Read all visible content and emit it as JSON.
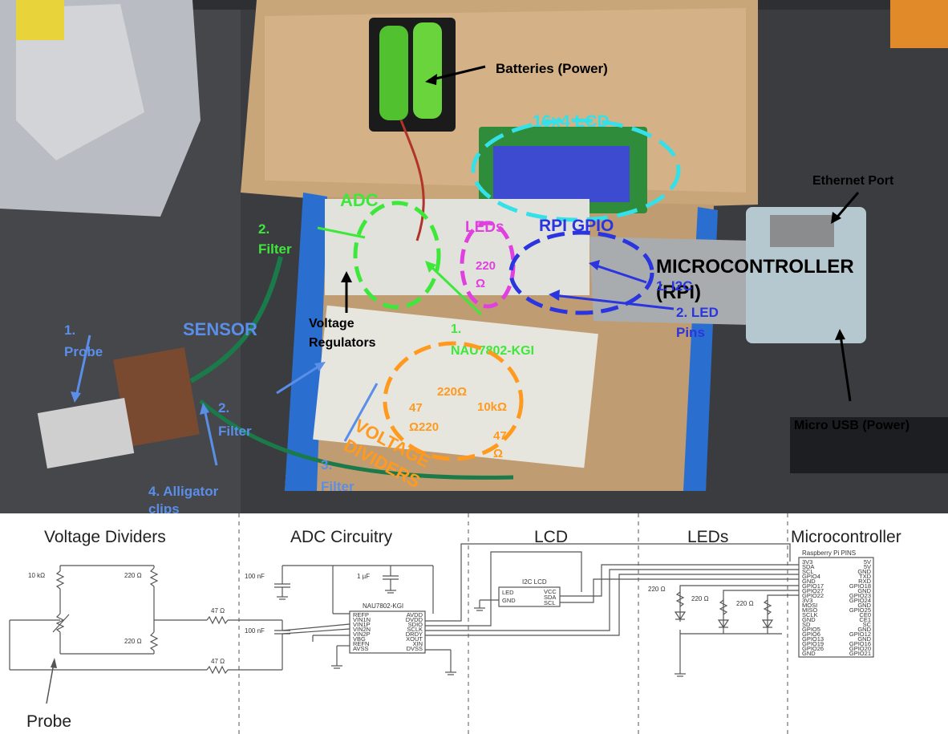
{
  "photo": {
    "batteries": "Batteries (Power)",
    "lcd": "16x4 LCD",
    "ethernet": "Ethernet Port",
    "adc": "ADC",
    "filter2_top": [
      "2.",
      "Filter"
    ],
    "leds": "LEDs",
    "r220": [
      "220",
      "Ω"
    ],
    "rpi_gpio": "RPI GPIO",
    "microcontroller": [
      "MICROCONTROLLER",
      "(RPI)"
    ],
    "i2c": "1. I2C",
    "led_pins": [
      "2. LED",
      "Pins"
    ],
    "probe": [
      "1.",
      "Probe"
    ],
    "sensor": "SENSOR",
    "voltage_regulators": [
      "Voltage",
      "Regulators"
    ],
    "nau": [
      "1.",
      "NAU7802-KGI"
    ],
    "filter2_bottom": [
      "2.",
      "Filter"
    ],
    "r_220": "220Ω",
    "r_10k": "10kΩ",
    "r_47": "47",
    "r_220b": "Ω220",
    "r_47b": [
      "47",
      "Ω"
    ],
    "voltage_dividers": [
      "VOLTAGE",
      "DIVIDERS"
    ],
    "filter3": [
      "3.",
      "Filter"
    ],
    "alligator": [
      "4. Alligator",
      "clips"
    ],
    "micro_usb": "Micro USB (Power)"
  },
  "schematic": {
    "sections": [
      "Voltage Dividers",
      "ADC Circuitry",
      "LCD",
      "LEDs",
      "Microcontroller"
    ],
    "probe": "Probe",
    "r10k": "10 kΩ",
    "r220a": "220 Ω",
    "r220b": "220 Ω",
    "r47a": "47 Ω",
    "r47b": "47 Ω",
    "c100a": "100 nF",
    "c1u": "1 µF",
    "c100b": "100 nF",
    "nau_title": "NAU7802-KGI",
    "nau_left": [
      "REFP",
      "VIN1N",
      "VIN1P",
      "VIN2N",
      "VIN2P",
      "VBG",
      "REFN",
      "AVSS"
    ],
    "nau_right": [
      "AVDD",
      "DVDD",
      "SDIO",
      "SCLK",
      "DRDY",
      "XOUT",
      "XIN",
      "DVSS"
    ],
    "lcd_title": "I2C LCD",
    "lcd_left": [
      "LED",
      "GND"
    ],
    "lcd_right": [
      "VCC",
      "SDA",
      "SCL"
    ],
    "led_r": [
      "220 Ω",
      "220 Ω",
      "220 Ω"
    ],
    "rpi_title": "Raspberry Pi PINS",
    "rpi_left": [
      "3V3",
      "SDA",
      "SCL",
      "GPIO4",
      "GND",
      "GPIO17",
      "GPIO27",
      "GPIO22",
      "3V3",
      "MOSI",
      "MISO",
      "SCLK",
      "GND",
      "SD",
      "GPIO5",
      "GPIO6",
      "GPIO13",
      "GPIO19",
      "GPIO26",
      "GND"
    ],
    "rpi_right": [
      "5V",
      "5V",
      "GND",
      "TXD",
      "RXD",
      "GPIO18",
      "GND",
      "GPIO23",
      "GPIO24",
      "GND",
      "GPIO25",
      "CE0",
      "CE1",
      "SC",
      "GND",
      "GPIO12",
      "GND",
      "GPIO16",
      "GPIO20",
      "GPIO21"
    ]
  },
  "colors": {
    "cyan": "#35e0e8",
    "green": "#3ee83a",
    "magenta": "#e040e0",
    "blue": "#2a35e0",
    "orange": "#ff9a1f",
    "lightblue": "#5a8ee8"
  }
}
